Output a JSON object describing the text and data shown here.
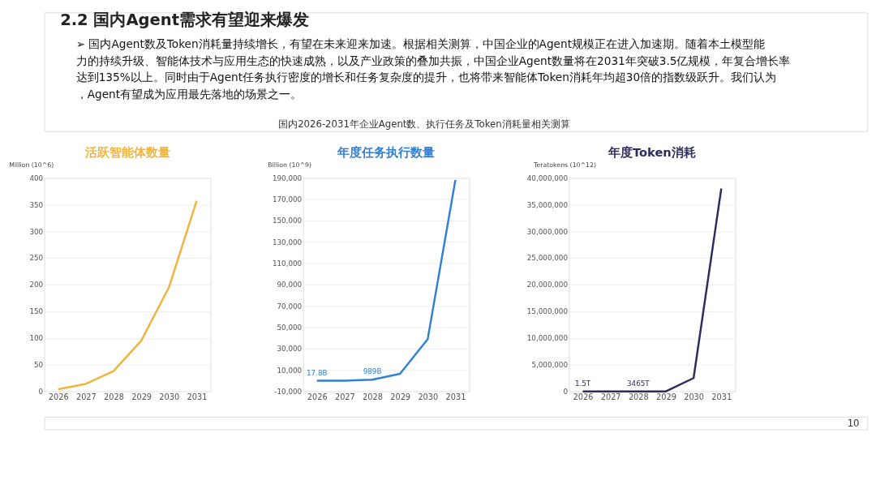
{
  "chart_data": [
    {
      "type": "other",
      "title": "2.2 国内Agent需求有望迎来爆发",
      "annotations": [
        "➢ 国内Agent数及Token消耗量持续增长，有望在未来迎来加速。根据相关测算，中国企业的Agent规模正在进入加速期。随着本土模型能力的持续升级、智能体技术与应用生态的快速成熟，以及产业政策的叠加共振，中国企业Agent数量将在2031年突破3.5亿规模，年复合增长率达到135%以上。同时由于Agent任务执行密度的增长和任务复杂度的提升，也将带来智能体Token消耗年均超30倍的指数级跃升。我们认为，Agent有望成为应用最先落地的场景之一。",
        "国内2026-2031年企业Agent数、执行任务及Token消耗量相关测算",
        "10"
      ]
    },
    {
      "type": "line",
      "title": "活跃智能体数量",
      "ylabel": "Million (10^6)",
      "categories": [
        "2026",
        "2027",
        "2028",
        "2029",
        "2030",
        "2031"
      ],
      "grid": "y",
      "ylim": [
        0,
        400
      ],
      "yticks": [
        0,
        50,
        100,
        150,
        200,
        250,
        300,
        350,
        400
      ],
      "series": [
        {
          "color": "#f0b43c",
          "values": [
            4,
            14,
            38,
            95,
            195,
            357
          ]
        }
      ]
    },
    {
      "type": "line",
      "title": "年度任务执行数量",
      "ylabel": "Billion (10^9)",
      "categories": [
        "2026",
        "2027",
        "2028",
        "2029",
        "2030",
        "2031"
      ],
      "grid": "y",
      "ylim": [
        -10000,
        190000
      ],
      "yticks": [
        {
          "value": -10000,
          "label": "-10,000"
        },
        {
          "value": 10000,
          "label": "10,000"
        },
        {
          "value": 30000,
          "label": "30,000"
        },
        {
          "value": 50000,
          "label": "50,000"
        },
        {
          "value": 70000,
          "label": "70,000"
        },
        {
          "value": 90000,
          "label": "90,000"
        },
        {
          "value": 110000,
          "label": "110,000"
        },
        {
          "value": 130000,
          "label": "130,000"
        },
        {
          "value": 150000,
          "label": "150,000"
        },
        {
          "value": 170000,
          "label": "170,000"
        },
        {
          "value": 190000,
          "label": "190,000"
        }
      ],
      "series": [
        {
          "color": "#2f7fd6",
          "values": [
            17.8,
            0,
            989,
            6500,
            39000,
            188000
          ],
          "value_labels": [
            "17.8B",
            null,
            "989B",
            null,
            null,
            null
          ]
        }
      ]
    },
    {
      "type": "line",
      "title": "年度Token消耗",
      "ylabel": "Teratokens (10^12)",
      "categories": [
        "2026",
        "2027",
        "2028",
        "2029",
        "2030",
        "2031"
      ],
      "grid": "y",
      "ylim": [
        0,
        40000000
      ],
      "yticks": [
        0,
        {
          "value": 5000000,
          "label": "5,000,000"
        },
        {
          "value": 10000000,
          "label": "10,000,000"
        },
        {
          "value": 15000000,
          "label": "15,000,000"
        },
        {
          "value": 20000000,
          "label": "20,000,000"
        },
        {
          "value": 25000000,
          "label": "25,000,000"
        },
        {
          "value": 30000000,
          "label": "30,000,000"
        },
        {
          "value": 35000000,
          "label": "35,000,000"
        },
        {
          "value": 40000000,
          "label": "40,000,000"
        }
      ],
      "series": [
        {
          "color": "#2c2a5e",
          "values": [
            1.5,
            0,
            3465,
            0,
            2500000,
            38000000
          ],
          "value_labels": [
            "1.5T",
            null,
            "3465T",
            null,
            null,
            null
          ]
        }
      ]
    }
  ]
}
